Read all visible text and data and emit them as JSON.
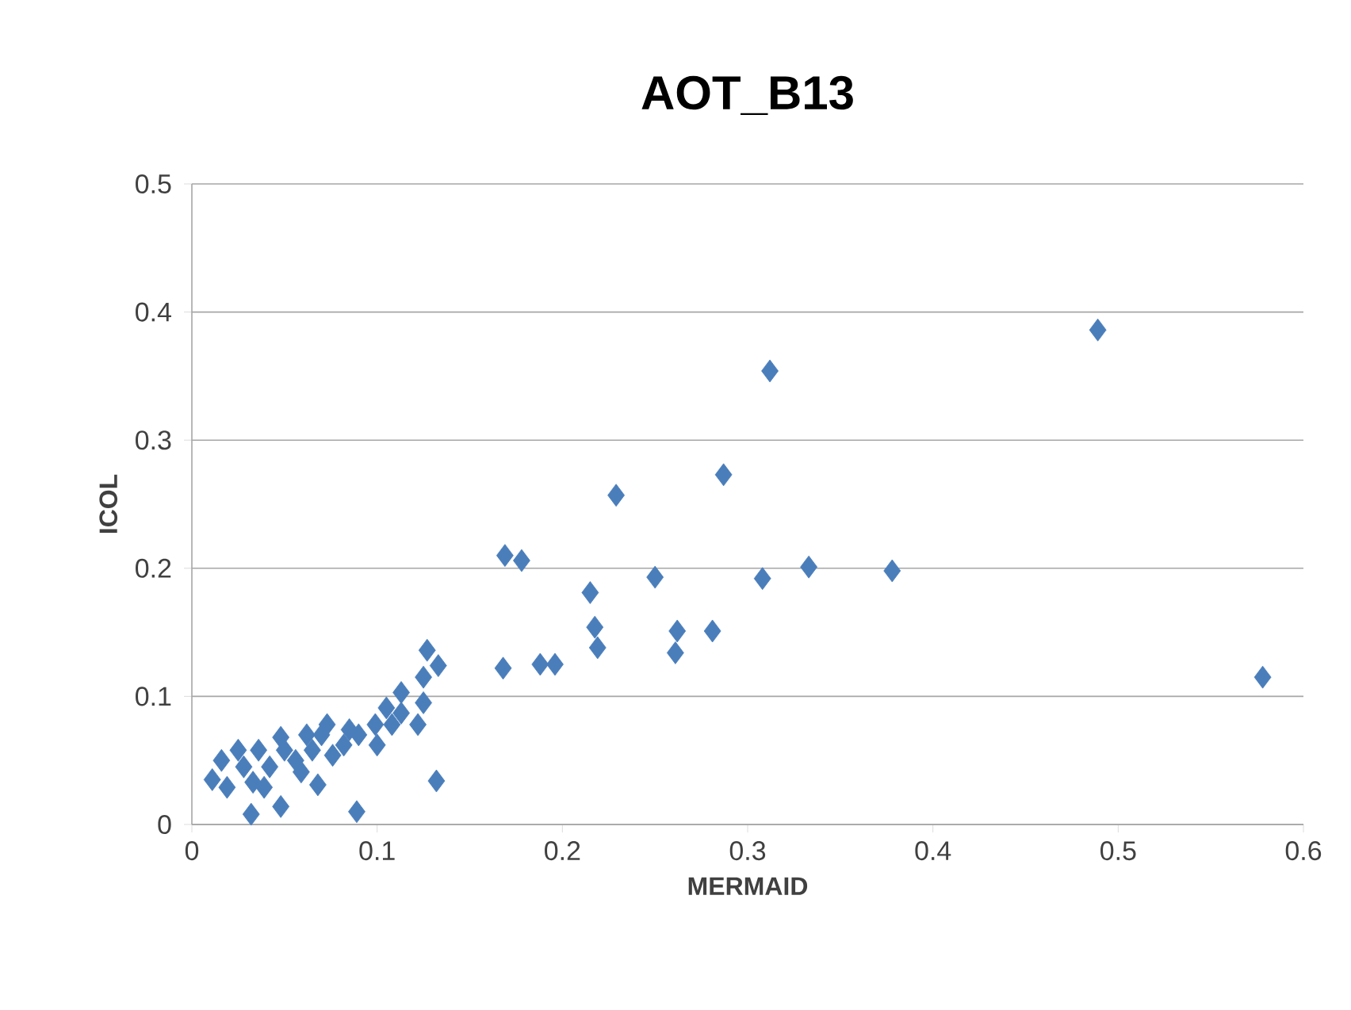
{
  "chart_data": {
    "type": "scatter",
    "title": "AOT_B13",
    "xlabel": "MERMAID",
    "ylabel": "ICOL",
    "xlim": [
      0,
      0.6
    ],
    "ylim": [
      0,
      0.5
    ],
    "xticks": [
      0,
      0.1,
      0.2,
      0.3,
      0.4,
      0.5,
      0.6
    ],
    "yticks": [
      0,
      0.1,
      0.2,
      0.3,
      0.4,
      0.5
    ],
    "grid": "y",
    "legend": false,
    "marker": "diamond",
    "series": [
      {
        "color": "#4a7ebb",
        "x": [
          0.489,
          0.312,
          0.287,
          0.229,
          0.169,
          0.178,
          0.215,
          0.25,
          0.308,
          0.333,
          0.378,
          0.2175,
          0.219,
          0.262,
          0.261,
          0.281,
          0.168,
          0.188,
          0.196,
          0.578,
          0.132,
          0.127,
          0.133,
          0.125,
          0.113,
          0.125,
          0.122,
          0.105,
          0.099,
          0.1,
          0.085,
          0.073,
          0.062,
          0.048,
          0.036,
          0.025,
          0.016,
          0.011,
          0.019,
          0.033,
          0.032,
          0.048,
          0.068,
          0.089,
          0.132,
          0.076,
          0.082,
          0.056,
          0.042,
          0.065,
          0.05,
          0.028,
          0.039,
          0.059,
          0.07,
          0.113,
          0.108,
          0.09
        ],
        "values": [
          0.386,
          0.354,
          0.273,
          0.257,
          0.21,
          0.206,
          0.181,
          0.193,
          0.192,
          0.201,
          0.198,
          0.154,
          0.138,
          0.151,
          0.134,
          0.151,
          0.122,
          0.125,
          0.125,
          0.115,
          null,
          0.136,
          0.124,
          0.115,
          0.103,
          0.095,
          0.078,
          0.091,
          0.078,
          0.062,
          0.074,
          0.078,
          0.07,
          0.068,
          0.058,
          0.058,
          0.05,
          0.035,
          0.029,
          0.033,
          0.008,
          0.014,
          0.031,
          0.01,
          0.034,
          0.054,
          0.062,
          0.05,
          0.045,
          0.058,
          0.058,
          0.045,
          0.029,
          0.041,
          0.07,
          0.087,
          0.078,
          0.07
        ]
      }
    ]
  }
}
